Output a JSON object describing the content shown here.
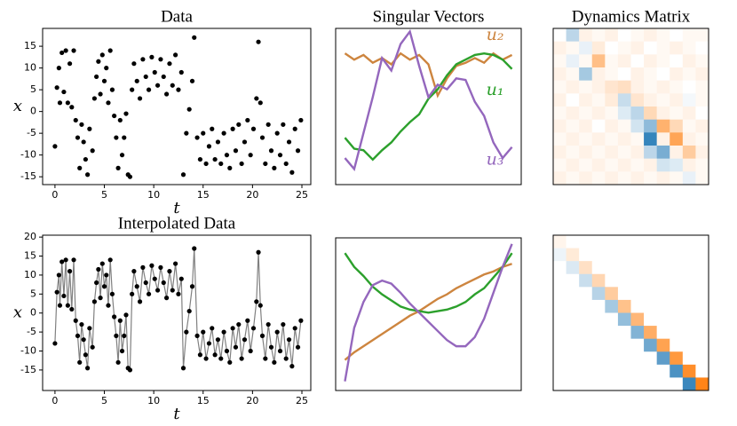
{
  "chart_data": [
    {
      "type": "scatter",
      "title": "Data",
      "xlabel": "t",
      "ylabel": "x",
      "color": "#000000",
      "x": [
        0.0,
        0.2,
        0.4,
        0.5,
        0.7,
        0.9,
        1.1,
        1.3,
        1.5,
        1.7,
        1.9,
        2.1,
        2.3,
        2.5,
        2.7,
        2.9,
        3.1,
        3.3,
        3.5,
        3.8,
        4.0,
        4.2,
        4.4,
        4.6,
        4.8,
        5.0,
        5.2,
        5.4,
        5.6,
        5.8,
        6.0,
        6.2,
        6.4,
        6.6,
        6.8,
        7.0,
        7.2,
        7.4,
        7.6,
        7.8,
        8.0,
        8.3,
        8.6,
        8.9,
        9.2,
        9.5,
        9.8,
        10.1,
        10.4,
        10.7,
        11.0,
        11.3,
        11.6,
        11.9,
        12.2,
        12.5,
        12.8,
        13.0,
        13.3,
        13.6,
        13.9,
        14.1,
        14.4,
        14.7,
        15.0,
        15.3,
        15.6,
        15.9,
        16.2,
        16.5,
        16.8,
        17.1,
        17.4,
        17.7,
        18.0,
        18.3,
        18.6,
        18.9,
        19.2,
        19.5,
        19.8,
        20.1,
        20.4,
        20.6,
        20.8,
        21.0,
        21.3,
        21.6,
        21.9,
        22.2,
        22.5,
        22.8,
        23.1,
        23.4,
        23.7,
        24.0,
        24.3,
        24.6,
        24.9
      ],
      "values": [
        -8,
        5.5,
        10,
        2,
        13.5,
        4.5,
        14,
        2,
        11,
        1,
        14,
        -2,
        -6,
        -13,
        -3,
        -7,
        -11,
        -14.5,
        -4,
        -9,
        3,
        8,
        11.5,
        4,
        13,
        7,
        10,
        2,
        14,
        5,
        -1,
        -6,
        -13,
        -2,
        -10,
        -6,
        -0.5,
        -14.5,
        -15,
        5,
        11,
        7,
        3,
        12,
        8,
        5,
        12.5,
        9,
        6,
        12,
        8,
        4,
        11,
        6,
        13,
        5,
        9,
        -14.5,
        -5,
        0.5,
        7,
        17,
        -6,
        -11,
        -5,
        -12,
        -8,
        -4,
        -11,
        -7,
        -12,
        -5,
        -10,
        -13,
        -4,
        -9,
        -3,
        -12,
        -7,
        -2,
        -10,
        -4,
        3,
        16,
        2,
        -6,
        -12,
        -3,
        -9,
        -13,
        -5,
        -10,
        -3,
        -12,
        -7,
        -14,
        -4,
        -9,
        -2
      ],
      "xlim": [
        -1.25,
        25.9
      ],
      "ylim": [
        -16.8,
        19.1
      ],
      "xticks": [
        0,
        5,
        10,
        15,
        20,
        25
      ],
      "yticks": [
        -15,
        -10,
        -5,
        0,
        5,
        10,
        15
      ]
    },
    {
      "type": "line",
      "title": "Singular Vectors",
      "x": [
        1,
        2,
        3,
        4,
        5,
        6,
        7,
        8,
        9,
        10,
        11,
        12,
        13,
        14,
        15,
        16,
        17,
        18,
        19
      ],
      "xlim": [
        0,
        20
      ],
      "ylim": [
        0,
        1
      ],
      "series": [
        {
          "name": "u₂",
          "color": "#cd853f",
          "values": [
            0.84,
            0.8,
            0.83,
            0.78,
            0.81,
            0.77,
            0.84,
            0.8,
            0.83,
            0.77,
            0.57,
            0.68,
            0.76,
            0.78,
            0.81,
            0.78,
            0.84,
            0.8,
            0.83
          ]
        },
        {
          "name": "u₁",
          "color": "#2ca02c",
          "values": [
            0.3,
            0.23,
            0.22,
            0.16,
            0.22,
            0.27,
            0.34,
            0.4,
            0.45,
            0.55,
            0.61,
            0.7,
            0.77,
            0.8,
            0.83,
            0.84,
            0.83,
            0.8,
            0.74
          ]
        },
        {
          "name": "u₃",
          "color": "#9467bd",
          "values": [
            0.17,
            0.1,
            0.33,
            0.56,
            0.81,
            0.73,
            0.9,
            0.98,
            0.76,
            0.56,
            0.64,
            0.61,
            0.68,
            0.67,
            0.53,
            0.44,
            0.27,
            0.17,
            0.24
          ]
        }
      ]
    },
    {
      "type": "heatmap",
      "title": "Dynamics Matrix",
      "clim": [
        -1,
        1
      ],
      "colors": {
        "negative": "#1f77b4",
        "positive": "#ff7f0e"
      },
      "z": [
        [
          0,
          -0.3,
          0.1,
          0.05,
          0.1,
          0,
          0.05,
          0.1,
          0.05,
          0,
          0.05,
          0.05
        ],
        [
          0.1,
          0.05,
          -0.1,
          0.15,
          0,
          0.05,
          0.1,
          0,
          0.05,
          0.1,
          0.05,
          0
        ],
        [
          0.05,
          -0.1,
          0.05,
          0.5,
          0.05,
          0.1,
          0,
          0.1,
          0.05,
          0,
          0.1,
          0.05
        ],
        [
          0.1,
          0.05,
          -0.4,
          0.1,
          0.05,
          0,
          0.1,
          0.05,
          0,
          0.1,
          0.05,
          0.1
        ],
        [
          0.05,
          0.1,
          0.05,
          0.1,
          0.2,
          0.25,
          0.1,
          0.05,
          0.1,
          0.05,
          0,
          0.05
        ],
        [
          0.1,
          0,
          0.1,
          0.05,
          0.15,
          -0.25,
          0.2,
          0.1,
          0.05,
          0.1,
          -0.05,
          0.05
        ],
        [
          0.05,
          0.1,
          0.05,
          0.1,
          0.05,
          -0.15,
          -0.3,
          0.3,
          0.1,
          0.05,
          0.1,
          0
        ],
        [
          0.1,
          0.05,
          0.1,
          0,
          0.1,
          0.05,
          -0.2,
          -0.5,
          0.6,
          0.3,
          0.05,
          0.1
        ],
        [
          0.05,
          0.1,
          0.05,
          0.1,
          0.05,
          0.1,
          0.05,
          -0.9,
          0.1,
          0.7,
          0.1,
          0.05
        ],
        [
          0.1,
          0.05,
          0.1,
          0.05,
          0.1,
          0.05,
          0.1,
          -0.3,
          -0.6,
          0.1,
          0.4,
          0.1
        ],
        [
          0.05,
          0.1,
          0.05,
          0.1,
          0.05,
          0.1,
          0.05,
          0.1,
          -0.2,
          -0.15,
          0.1,
          0.05
        ],
        [
          0.1,
          0.05,
          0.1,
          0.05,
          0.1,
          0.05,
          0.1,
          0.05,
          0.1,
          0.05,
          -0.1,
          0.05
        ]
      ]
    },
    {
      "type": "line",
      "title": "Interpolated Data",
      "xlabel": "t",
      "ylabel": "x",
      "color": "#808080",
      "marker_color": "#000000",
      "markers": true,
      "x": [
        0.0,
        0.2,
        0.4,
        0.5,
        0.7,
        0.9,
        1.1,
        1.3,
        1.5,
        1.7,
        1.9,
        2.1,
        2.3,
        2.5,
        2.7,
        2.9,
        3.1,
        3.3,
        3.5,
        3.8,
        4.0,
        4.2,
        4.4,
        4.6,
        4.8,
        5.0,
        5.2,
        5.4,
        5.6,
        5.8,
        6.0,
        6.2,
        6.4,
        6.6,
        6.8,
        7.0,
        7.2,
        7.4,
        7.6,
        7.8,
        8.0,
        8.3,
        8.6,
        8.9,
        9.2,
        9.5,
        9.8,
        10.1,
        10.4,
        10.7,
        11.0,
        11.3,
        11.6,
        11.9,
        12.2,
        12.5,
        12.8,
        13.0,
        13.3,
        13.6,
        13.9,
        14.1,
        14.4,
        14.7,
        15.0,
        15.3,
        15.6,
        15.9,
        16.2,
        16.5,
        16.8,
        17.1,
        17.4,
        17.7,
        18.0,
        18.3,
        18.6,
        18.9,
        19.2,
        19.5,
        19.8,
        20.1,
        20.4,
        20.6,
        20.8,
        21.0,
        21.3,
        21.6,
        21.9,
        22.2,
        22.5,
        22.8,
        23.1,
        23.4,
        23.7,
        24.0,
        24.3,
        24.6,
        24.9
      ],
      "values": [
        -8,
        5.5,
        10,
        2,
        13.5,
        4.5,
        14,
        2,
        11,
        1,
        14,
        -2,
        -6,
        -13,
        -3,
        -7,
        -11,
        -14.5,
        -4,
        -9,
        3,
        8,
        11.5,
        4,
        13,
        7,
        10,
        2,
        14,
        5,
        -1,
        -6,
        -13,
        -2,
        -10,
        -6,
        -0.5,
        -14.5,
        -15,
        5,
        11,
        7,
        3,
        12,
        8,
        5,
        12.5,
        9,
        6,
        12,
        8,
        4,
        11,
        6,
        13,
        5,
        9,
        -14.5,
        -5,
        0.5,
        7,
        17,
        -6,
        -11,
        -5,
        -12,
        -8,
        -4,
        -11,
        -7,
        -12,
        -5,
        -10,
        -13,
        -4,
        -9,
        -3,
        -12,
        -7,
        -2,
        -10,
        -4,
        3,
        16,
        2,
        -6,
        -12,
        -3,
        -9,
        -13,
        -5,
        -10,
        -3,
        -12,
        -7,
        -14,
        -4,
        -9,
        -2
      ],
      "xlim": [
        -1.25,
        25.9
      ],
      "ylim": [
        -20.4,
        20.5
      ],
      "xticks": [
        0,
        5,
        10,
        15,
        20,
        25
      ],
      "yticks": [
        -15,
        -10,
        -5,
        0,
        5,
        10,
        15,
        20
      ]
    },
    {
      "type": "line",
      "x": [
        1,
        2,
        3,
        4,
        5,
        6,
        7,
        8,
        9,
        10,
        11,
        12,
        13,
        14,
        15,
        16,
        17,
        18,
        19
      ],
      "xlim": [
        0,
        20
      ],
      "ylim": [
        0,
        1
      ],
      "series": [
        {
          "color": "#cd853f",
          "values": [
            0.2,
            0.25,
            0.29,
            0.33,
            0.37,
            0.41,
            0.45,
            0.49,
            0.52,
            0.56,
            0.6,
            0.63,
            0.67,
            0.7,
            0.73,
            0.76,
            0.78,
            0.81,
            0.83
          ]
        },
        {
          "color": "#2ca02c",
          "values": [
            0.9,
            0.81,
            0.75,
            0.68,
            0.63,
            0.59,
            0.55,
            0.53,
            0.52,
            0.51,
            0.52,
            0.53,
            0.55,
            0.58,
            0.63,
            0.67,
            0.74,
            0.81,
            0.9
          ]
        },
        {
          "color": "#9467bd",
          "values": [
            0.06,
            0.41,
            0.58,
            0.69,
            0.72,
            0.7,
            0.64,
            0.57,
            0.51,
            0.45,
            0.39,
            0.33,
            0.29,
            0.29,
            0.35,
            0.47,
            0.64,
            0.81,
            0.96
          ]
        }
      ]
    },
    {
      "type": "heatmap",
      "clim": [
        -1,
        1
      ],
      "colors": {
        "negative": "#1f77b4",
        "positive": "#ff7f0e"
      },
      "z": [
        [
          0.08,
          0,
          0,
          0,
          0,
          0,
          0,
          0,
          0,
          0,
          0,
          0
        ],
        [
          -0.08,
          0.16,
          0,
          0,
          0,
          0,
          0,
          0,
          0,
          0,
          0,
          0
        ],
        [
          0,
          -0.16,
          0.24,
          0,
          0,
          0,
          0,
          0,
          0,
          0,
          0,
          0
        ],
        [
          0,
          0,
          -0.24,
          0.32,
          0,
          0,
          0,
          0,
          0,
          0,
          0,
          0
        ],
        [
          0,
          0,
          0,
          -0.32,
          0.4,
          0,
          0,
          0,
          0,
          0,
          0,
          0
        ],
        [
          0,
          0,
          0,
          0,
          -0.4,
          0.48,
          0,
          0,
          0,
          0,
          0,
          0
        ],
        [
          0,
          0,
          0,
          0,
          0,
          -0.48,
          0.56,
          0,
          0,
          0,
          0,
          0
        ],
        [
          0,
          0,
          0,
          0,
          0,
          0,
          -0.56,
          0.64,
          0,
          0,
          0,
          0
        ],
        [
          0,
          0,
          0,
          0,
          0,
          0,
          0,
          -0.64,
          0.72,
          0,
          0,
          0
        ],
        [
          0,
          0,
          0,
          0,
          0,
          0,
          0,
          0,
          -0.72,
          0.8,
          0,
          0
        ],
        [
          0,
          0,
          0,
          0,
          0,
          0,
          0,
          0,
          0,
          -0.8,
          0.88,
          0
        ],
        [
          0,
          0,
          0,
          0,
          0,
          0,
          0,
          0,
          0,
          0,
          -0.88,
          0.96
        ]
      ]
    }
  ]
}
